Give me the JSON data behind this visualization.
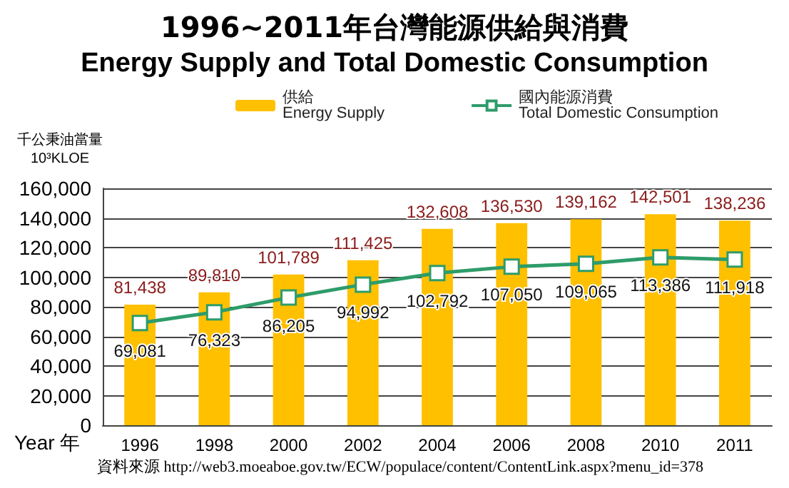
{
  "chart_data": {
    "type": "bar",
    "title": "1996~2011年台灣能源供給與消費",
    "subtitle": "Energy Supply and Total Domestic Consumption",
    "ylabel": "千公秉油當量\n10³KLOE",
    "xlabel": "Year 年",
    "categories": [
      "1996",
      "1998",
      "2000",
      "2002",
      "2004",
      "2006",
      "2008",
      "2010",
      "2011"
    ],
    "series": [
      {
        "name": "供給\nEnergy Supply",
        "color": "#ffc000",
        "values": [
          81438,
          89810,
          101789,
          111425,
          132608,
          136530,
          139162,
          142501,
          138236
        ],
        "value_labels": [
          "81,438",
          "89,810",
          "101,789",
          "111,425",
          "132,608",
          "136,530",
          "139,162",
          "142,501",
          "138,236"
        ]
      },
      {
        "name": "國內能源消費\nTotal Domestic Consumption",
        "type": "line",
        "color": "#2e9c6a",
        "values": [
          69081,
          76323,
          86205,
          94992,
          102792,
          107050,
          109065,
          113386,
          111918
        ],
        "value_labels": [
          "69,081",
          "76,323",
          "86,205",
          "94,992",
          "102,792",
          "107,050",
          "109,065",
          "113,386",
          "111,918"
        ]
      }
    ],
    "ylim": [
      0,
      160000
    ],
    "yticks": [
      0,
      {
        "value": 20000,
        "label": "20,000"
      },
      {
        "value": 40000,
        "label": "40,000"
      },
      {
        "value": 60000,
        "label": "60,000"
      },
      {
        "value": 80000,
        "label": "80,000"
      },
      {
        "value": 100000,
        "label": "100,000"
      },
      {
        "value": 120000,
        "label": "120,000"
      },
      {
        "value": 140000,
        "label": "140,000"
      },
      {
        "value": 160000,
        "label": "160,000"
      }
    ],
    "grid": "y",
    "legend": "top",
    "marker": "square",
    "annotations": [
      "資料來源 http://web3.moeaboe.gov.tw/ECW/populace/content/ContentLink.aspx?menu_id=378"
    ]
  }
}
